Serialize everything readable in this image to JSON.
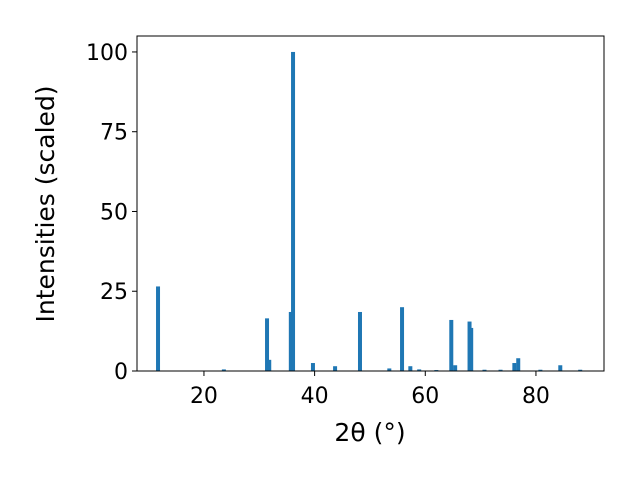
{
  "chart_data": {
    "type": "bar",
    "xlabel": "2θ (°)",
    "ylabel": "Intensities (scaled)",
    "x": [
      11.7,
      23.6,
      31.4,
      31.8,
      35.7,
      36.1,
      39.7,
      43.7,
      48.2,
      53.5,
      55.8,
      57.3,
      58.9,
      62.0,
      64.7,
      65.4,
      68.0,
      68.3,
      70.7,
      73.6,
      76.1,
      76.8,
      80.8,
      84.4,
      88.0
    ],
    "values": [
      26.5,
      0.5,
      16.5,
      3.5,
      18.5,
      100,
      2.5,
      1.5,
      18.5,
      0.8,
      20,
      1.5,
      0.5,
      0.3,
      16,
      1.8,
      15.5,
      13.5,
      0.4,
      0.4,
      2.5,
      4,
      0.4,
      1.8,
      0.4
    ],
    "color": "#1f77b4",
    "xlim": [
      7.9,
      92.3
    ],
    "ylim": [
      0,
      105
    ],
    "xticks": [
      20,
      40,
      60,
      80
    ],
    "yticks": [
      0,
      25,
      50,
      75,
      100
    ]
  }
}
